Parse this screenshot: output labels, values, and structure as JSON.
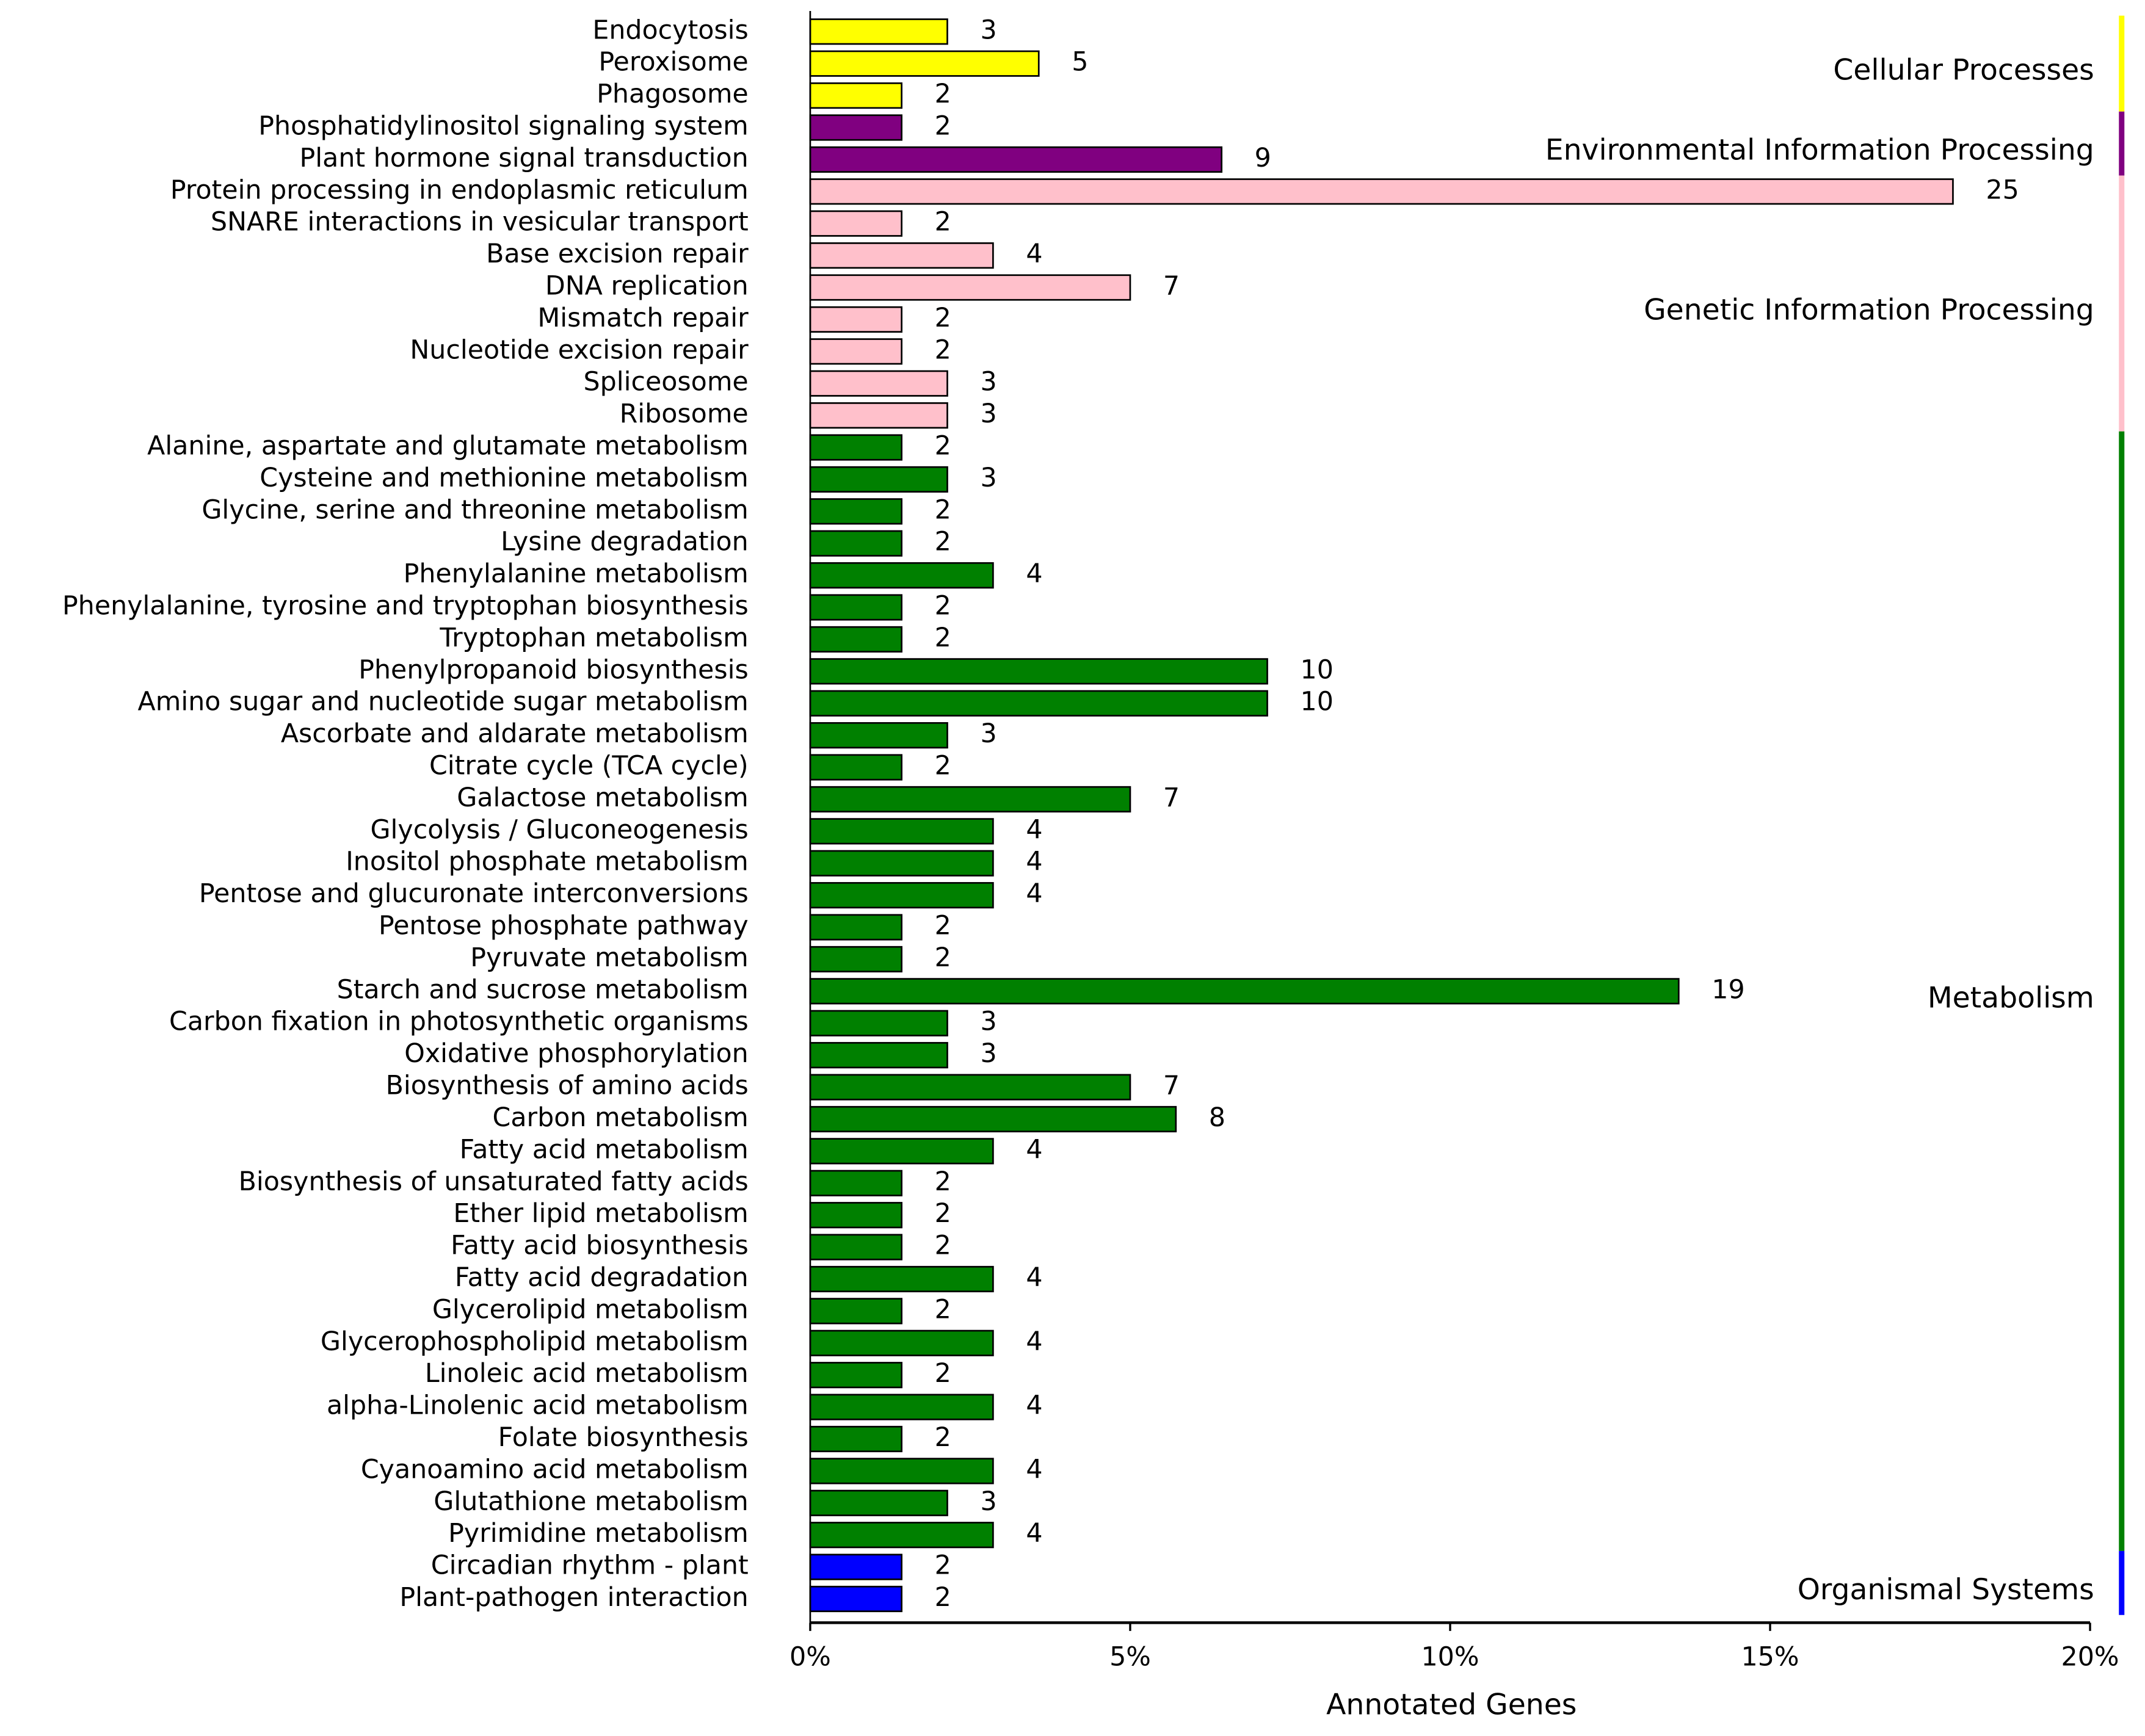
{
  "chart_data": {
    "type": "bar",
    "orientation": "horizontal",
    "x_label": "Annotated Genes",
    "xlim": [
      0,
      28
    ],
    "xticks": [
      {
        "value": 0,
        "label": "0%"
      },
      {
        "value": 7,
        "label": "5%"
      },
      {
        "value": 14,
        "label": "10%"
      },
      {
        "value": 21,
        "label": "15%"
      },
      {
        "value": 28,
        "label": "20%"
      }
    ],
    "series": [
      {
        "name": "Cellular Processes",
        "color": "#ffff00",
        "categories": [
          "Endocytosis",
          "Peroxisome",
          "Phagosome"
        ],
        "values": [
          3,
          5,
          2
        ]
      },
      {
        "name": "Environmental Information Processing",
        "color": "#800080",
        "categories": [
          "Phosphatidylinositol signaling system",
          "Plant hormone signal transduction"
        ],
        "values": [
          2,
          9
        ]
      },
      {
        "name": "Genetic Information Processing",
        "color": "#ffc0cb",
        "categories": [
          "Protein processing in endoplasmic reticulum",
          "SNARE interactions in vesicular transport",
          "Base excision repair",
          "DNA replication",
          "Mismatch repair",
          "Nucleotide excision repair",
          "Spliceosome",
          "Ribosome"
        ],
        "values": [
          25,
          2,
          4,
          7,
          2,
          2,
          3,
          3
        ]
      },
      {
        "name": "Metabolism",
        "color": "#008000",
        "categories": [
          "Alanine, aspartate and glutamate metabolism",
          "Cysteine and methionine metabolism",
          "Glycine, serine and threonine metabolism",
          "Lysine degradation",
          "Phenylalanine metabolism",
          "Phenylalanine, tyrosine and tryptophan biosynthesis",
          "Tryptophan metabolism",
          "Phenylpropanoid biosynthesis",
          "Amino sugar and nucleotide sugar metabolism",
          "Ascorbate and aldarate metabolism",
          "Citrate cycle (TCA cycle)",
          "Galactose metabolism",
          "Glycolysis / Gluconeogenesis",
          "Inositol phosphate metabolism",
          "Pentose and glucuronate interconversions",
          "Pentose phosphate pathway",
          "Pyruvate metabolism",
          "Starch and sucrose metabolism",
          "Carbon fixation in photosynthetic organisms",
          "Oxidative phosphorylation",
          "Biosynthesis of amino acids",
          "Carbon metabolism",
          "Fatty acid metabolism",
          "Biosynthesis of unsaturated fatty acids",
          "Ether lipid metabolism",
          "Fatty acid biosynthesis",
          "Fatty acid degradation",
          "Glycerolipid metabolism",
          "Glycerophospholipid metabolism",
          "Linoleic acid metabolism",
          "alpha-Linolenic acid metabolism",
          "Folate biosynthesis",
          "Cyanoamino acid metabolism",
          "Glutathione metabolism",
          "Pyrimidine metabolism"
        ],
        "values": [
          2,
          3,
          2,
          2,
          4,
          2,
          2,
          10,
          10,
          3,
          2,
          7,
          4,
          4,
          4,
          2,
          2,
          19,
          3,
          3,
          7,
          8,
          4,
          2,
          2,
          2,
          4,
          2,
          4,
          2,
          4,
          2,
          4,
          3,
          4
        ]
      },
      {
        "name": "Organismal Systems",
        "color": "#0000ff",
        "categories": [
          "Circadian rhythm - plant",
          "Plant-pathogen interaction"
        ],
        "values": [
          2,
          2
        ]
      }
    ]
  }
}
